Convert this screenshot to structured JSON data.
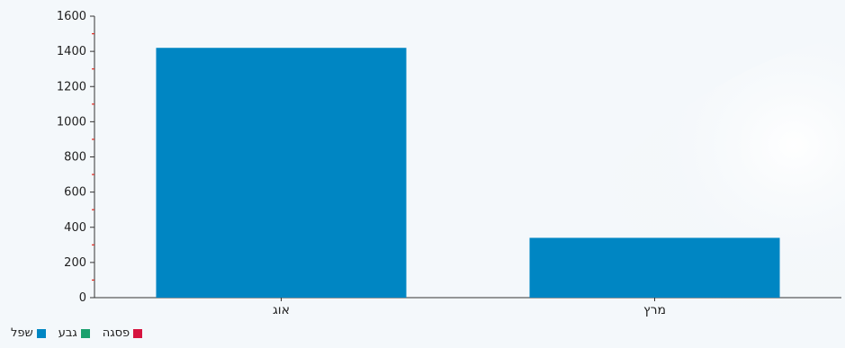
{
  "chart_data": {
    "type": "bar",
    "categories": [
      "אוג",
      "מרץ"
    ],
    "series": [
      {
        "name": "שפל",
        "values": [
          1420,
          340
        ],
        "color": "#0086c3"
      }
    ],
    "ylim": [
      0,
      1600
    ],
    "yticks": [
      0,
      200,
      400,
      600,
      800,
      1000,
      1200,
      1400,
      1600
    ],
    "grid": false
  },
  "legend": [
    {
      "label": "שפל",
      "color": "#0086c3"
    },
    {
      "label": "גבע",
      "color": "#1aa06d"
    },
    {
      "label": "פסגה",
      "color": "#d6143f"
    }
  ]
}
